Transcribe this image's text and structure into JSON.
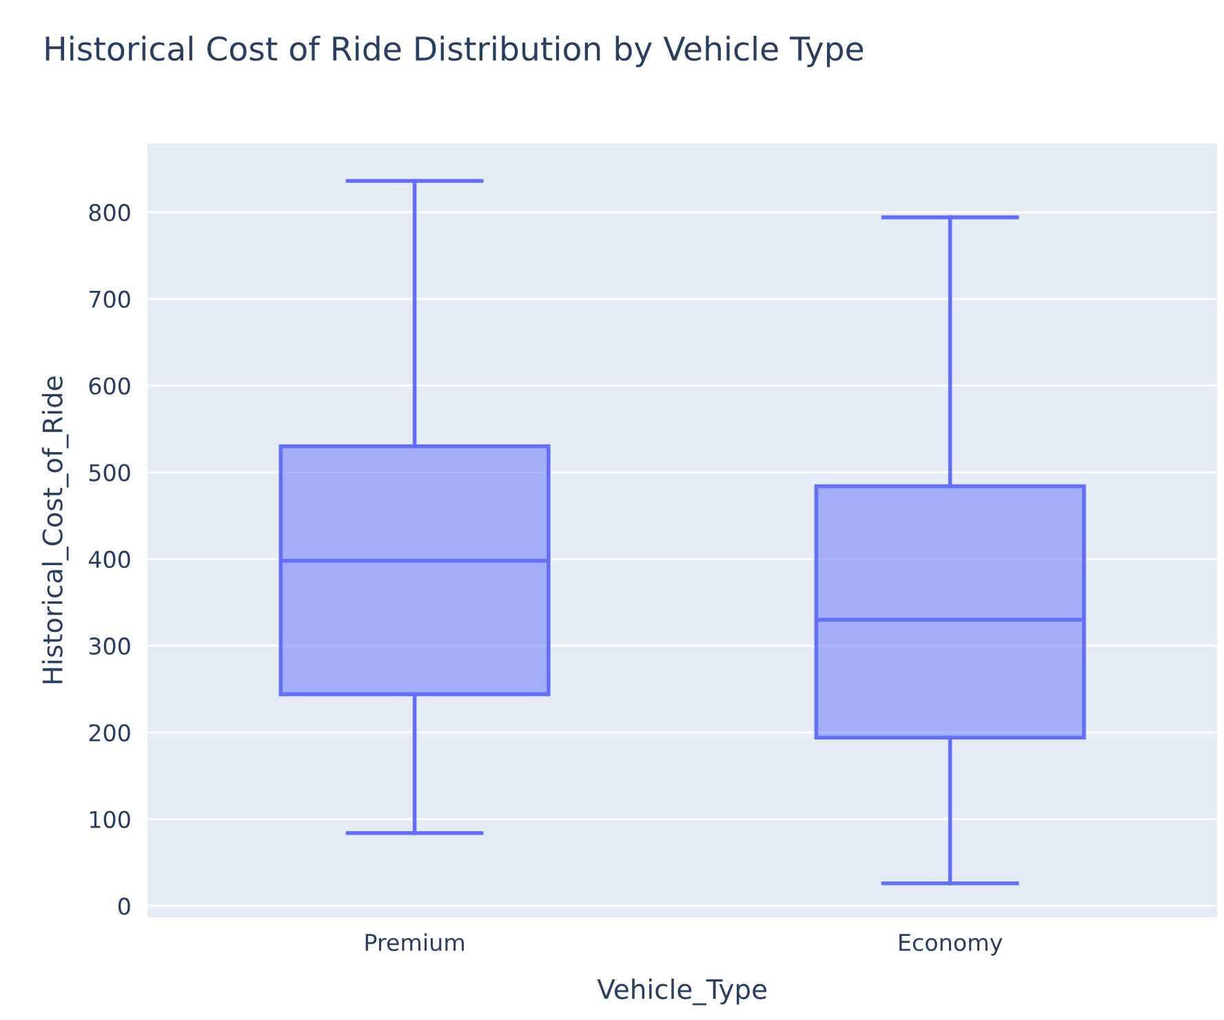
{
  "chart_data": {
    "type": "box",
    "title": "Historical Cost of Ride Distribution by Vehicle Type",
    "xlabel": "Vehicle_Type",
    "ylabel": "Historical_Cost_of_Ride",
    "categories": [
      "Premium",
      "Economy"
    ],
    "boxes": [
      {
        "low": 84,
        "q1": 244,
        "median": 398,
        "q3": 530,
        "high": 836
      },
      {
        "low": 26,
        "q1": 194,
        "median": 330,
        "q3": 484,
        "high": 794
      }
    ],
    "color": "#636efa",
    "ylim": [
      -14,
      880
    ],
    "yticks": [
      0,
      100,
      200,
      300,
      400,
      500,
      600,
      700,
      800
    ],
    "grid": "y"
  }
}
